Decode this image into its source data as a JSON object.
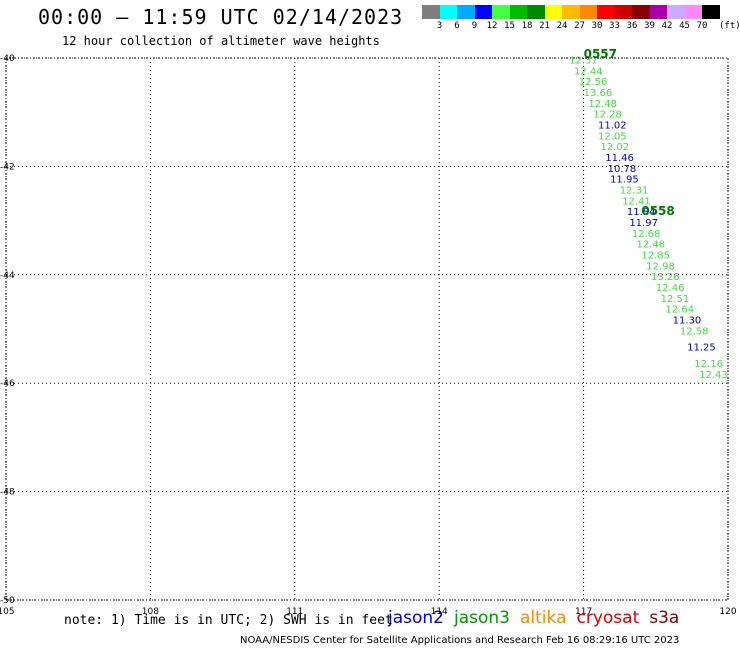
{
  "header": {
    "title": "00:00 – 11:59 UTC 02/14/2023",
    "subtitle": "12 hour collection of altimeter wave heights"
  },
  "colorbar": {
    "colors": [
      "#7f7f7f",
      "#00ffff",
      "#00aaff",
      "#0000ff",
      "#44ff44",
      "#00bb00",
      "#008800",
      "#ffff00",
      "#ffbb00",
      "#ff8800",
      "#ff0000",
      "#cc0000",
      "#880000",
      "#aa00aa",
      "#ccaaff",
      "#ff88ff",
      "#000000"
    ],
    "labels": [
      "3",
      "6",
      "9",
      "12",
      "15",
      "18",
      "21",
      "24",
      "27",
      "30",
      "33",
      "36",
      "39",
      "42",
      "45",
      "70"
    ],
    "unit": "(ft)"
  },
  "map": {
    "lon_range": [
      105,
      120
    ],
    "lat_range": [
      -50,
      -40
    ],
    "x_ticks": [
      "105",
      "108",
      "111",
      "114",
      "117",
      "120"
    ],
    "y_ticks": [
      "-40",
      "-42",
      "-44",
      "-46",
      "-48",
      "-50"
    ],
    "grid": "dotted"
  },
  "chart_data": {
    "type": "scatter",
    "series": [
      {
        "name": "jason3",
        "color": "#44dd44",
        "points": [
          {
            "lon": 116.7,
            "lat": -40.1,
            "swh": "12.37"
          },
          {
            "lon": 116.8,
            "lat": -40.3,
            "swh": "12.44"
          },
          {
            "lon": 116.9,
            "lat": -40.5,
            "swh": "12.56"
          },
          {
            "lon": 117.0,
            "lat": -40.7,
            "swh": "13.66"
          },
          {
            "lon": 117.1,
            "lat": -40.9,
            "swh": "12.48"
          },
          {
            "lon": 117.2,
            "lat": -41.1,
            "swh": "12.28"
          },
          {
            "lon": 117.3,
            "lat": -41.5,
            "swh": "12.05"
          },
          {
            "lon": 117.35,
            "lat": -41.7,
            "swh": "12.02"
          },
          {
            "lon": 117.75,
            "lat": -42.5,
            "swh": "12.31"
          },
          {
            "lon": 117.8,
            "lat": -42.7,
            "swh": "12.41"
          },
          {
            "lon": 118.0,
            "lat": -43.3,
            "swh": "12.68"
          },
          {
            "lon": 118.1,
            "lat": -43.5,
            "swh": "12.48"
          },
          {
            "lon": 118.2,
            "lat": -43.7,
            "swh": "12.85"
          },
          {
            "lon": 118.3,
            "lat": -43.9,
            "swh": "12.98"
          },
          {
            "lon": 118.4,
            "lat": -44.1,
            "swh": "13.26"
          },
          {
            "lon": 118.5,
            "lat": -44.3,
            "swh": "12.46"
          },
          {
            "lon": 118.6,
            "lat": -44.5,
            "swh": "12.51"
          },
          {
            "lon": 118.7,
            "lat": -44.7,
            "swh": "12.64"
          },
          {
            "lon": 119.0,
            "lat": -45.1,
            "swh": "12.58"
          },
          {
            "lon": 119.3,
            "lat": -45.7,
            "swh": "12.16"
          },
          {
            "lon": 119.4,
            "lat": -45.9,
            "swh": "12.43"
          }
        ]
      },
      {
        "name": "jason2",
        "color": "#0000cc",
        "points": [
          {
            "lon": 117.3,
            "lat": -41.3,
            "swh": "11.02"
          },
          {
            "lon": 117.45,
            "lat": -41.9,
            "swh": "11.46"
          },
          {
            "lon": 117.5,
            "lat": -42.1,
            "swh": "10.78"
          },
          {
            "lon": 117.55,
            "lat": -42.3,
            "swh": "11.95"
          },
          {
            "lon": 117.9,
            "lat": -42.9,
            "swh": "11.84"
          },
          {
            "lon": 117.95,
            "lat": -43.1,
            "swh": "11.97"
          },
          {
            "lon": 118.85,
            "lat": -44.9,
            "swh": "11.30"
          },
          {
            "lon": 119.15,
            "lat": -45.4,
            "swh": "11.25"
          }
        ]
      }
    ],
    "time_labels": [
      {
        "text": "0557",
        "lon": 117.0,
        "lat": -40.0
      },
      {
        "text": "0558",
        "lon": 118.2,
        "lat": -42.9
      }
    ]
  },
  "note": "note: 1) Time is in UTC; 2) SWH is in feet",
  "satellites": [
    {
      "name": "jason2",
      "color": "#0000dd"
    },
    {
      "name": "jason3",
      "color": "#009900"
    },
    {
      "name": "altika",
      "color": "#ff8800"
    },
    {
      "name": "cryosat",
      "color": "#dd0000"
    },
    {
      "name": "s3a",
      "color": "#880000"
    }
  ],
  "footer": "NOAA/NESDIS Center for Satellite Applications and Research   Feb 16 08:29:16 UTC 2023"
}
